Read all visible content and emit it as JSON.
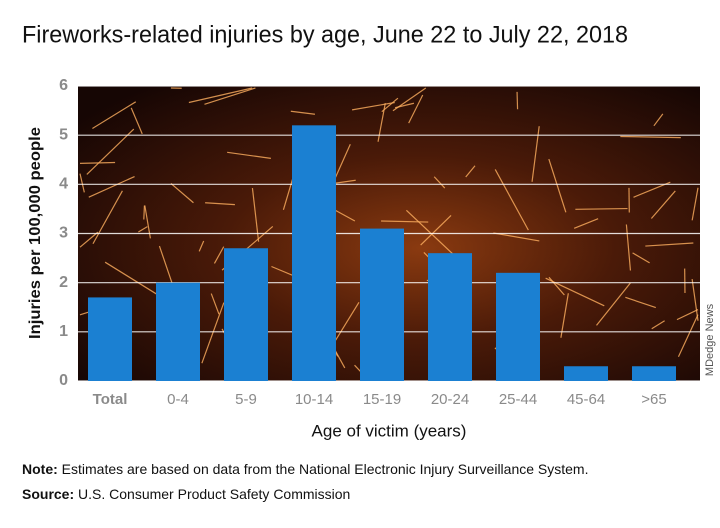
{
  "chart_data": {
    "type": "bar",
    "title": "Fireworks-related injuries by age, June 22 to July 22, 2018",
    "y_label": "Injuries per 100,000 people",
    "x_label": "Age of victim (years)",
    "categories": [
      "Total",
      "0-4",
      "5-9",
      "10-14",
      "15-19",
      "20-24",
      "25-44",
      "45-64",
      ">65"
    ],
    "values": [
      1.7,
      2.0,
      2.7,
      5.2,
      3.1,
      2.6,
      2.2,
      0.3,
      0.3
    ],
    "color": "#1b80d2",
    "ylim": [
      0,
      6
    ],
    "yticks": [
      0,
      1,
      2,
      3,
      4,
      5,
      6
    ],
    "grid": true,
    "note": {
      "label": "Note:",
      "text": "Estimates are based on data from the National Electronic Injury Surveillance System."
    },
    "source": {
      "label": "Source:",
      "text": "U.S. Consumer Product Safety Commission"
    },
    "credit": "MDedge News"
  }
}
